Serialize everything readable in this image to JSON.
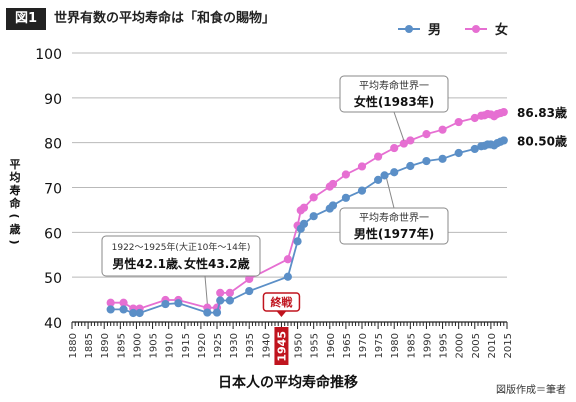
{
  "figure": {
    "badge": "図1",
    "title": "世界有数の平均寿命は「和食の賜物」",
    "bottom_title": "日本人の平均寿命推移",
    "credit": "図版作成＝筆者"
  },
  "colors": {
    "male": "#5b8fc7",
    "female": "#e66fd2",
    "war_marker": "#c0141e",
    "grid": "#b9b9b9",
    "axis": "#222222"
  },
  "annotations": {
    "war_label": "終戦",
    "war_year": "1945",
    "pre_war_line1": "1922〜1925年(大正10年〜14年)",
    "pre_war_line2": "男性42.1歳､女性43.2歳",
    "female_note_line1": "平均寿命世界一",
    "female_note_line2": "女性(1983年)",
    "male_note_line1": "平均寿命世界一",
    "male_note_line2": "男性(1977年)",
    "female_end_value": "86.83歳",
    "male_end_value": "80.50歳"
  },
  "chart_data": {
    "type": "line",
    "title": "日本人の平均寿命推移",
    "xlabel": "",
    "ylabel": "平均寿命(歳)",
    "xlim": [
      1880,
      2015
    ],
    "ylim": [
      40,
      100
    ],
    "x_ticks": [
      1880,
      1885,
      1890,
      1895,
      1900,
      1905,
      1910,
      1915,
      1920,
      1925,
      1930,
      1935,
      1940,
      1945,
      1950,
      1955,
      1960,
      1965,
      1970,
      1975,
      1980,
      1985,
      1990,
      1995,
      2000,
      2005,
      2010,
      2015
    ],
    "y_ticks": [
      40,
      50,
      60,
      70,
      80,
      90,
      100
    ],
    "grid": "horizontal",
    "legend": "top-right",
    "series": [
      {
        "name": "男",
        "color": "#5b8fc7",
        "points": [
          [
            1892,
            42.8
          ],
          [
            1896,
            42.8
          ],
          [
            1899,
            42.0
          ],
          [
            1901,
            42.0
          ],
          [
            1909,
            44.0
          ],
          [
            1913,
            44.2
          ],
          [
            1922,
            42.1
          ],
          [
            1925,
            42.1
          ],
          [
            1926,
            44.8
          ],
          [
            1929,
            44.8
          ],
          [
            1935,
            46.9
          ],
          [
            1947,
            50.1
          ],
          [
            1950,
            58.0
          ],
          [
            1951,
            60.8
          ],
          [
            1952,
            61.9
          ],
          [
            1955,
            63.6
          ],
          [
            1960,
            65.3
          ],
          [
            1961,
            66.0
          ],
          [
            1965,
            67.7
          ],
          [
            1970,
            69.3
          ],
          [
            1975,
            71.7
          ],
          [
            1977,
            72.7
          ],
          [
            1980,
            73.4
          ],
          [
            1985,
            74.8
          ],
          [
            1990,
            75.9
          ],
          [
            1995,
            76.4
          ],
          [
            2000,
            77.7
          ],
          [
            2005,
            78.6
          ],
          [
            2007,
            79.2
          ],
          [
            2008,
            79.3
          ],
          [
            2009,
            79.6
          ],
          [
            2010,
            79.6
          ],
          [
            2011,
            79.4
          ],
          [
            2012,
            79.9
          ],
          [
            2013,
            80.2
          ],
          [
            2014,
            80.5
          ]
        ]
      },
      {
        "name": "女",
        "color": "#e66fd2",
        "points": [
          [
            1892,
            44.3
          ],
          [
            1896,
            44.3
          ],
          [
            1899,
            43.0
          ],
          [
            1901,
            43.0
          ],
          [
            1909,
            44.9
          ],
          [
            1913,
            44.9
          ],
          [
            1922,
            43.2
          ],
          [
            1925,
            43.2
          ],
          [
            1926,
            46.5
          ],
          [
            1929,
            46.5
          ],
          [
            1935,
            49.6
          ],
          [
            1947,
            54.0
          ],
          [
            1950,
            61.5
          ],
          [
            1951,
            64.9
          ],
          [
            1952,
            65.5
          ],
          [
            1955,
            67.8
          ],
          [
            1960,
            70.2
          ],
          [
            1961,
            70.8
          ],
          [
            1965,
            72.9
          ],
          [
            1970,
            74.7
          ],
          [
            1975,
            76.9
          ],
          [
            1980,
            78.8
          ],
          [
            1983,
            79.8
          ],
          [
            1985,
            80.5
          ],
          [
            1990,
            81.9
          ],
          [
            1995,
            82.9
          ],
          [
            2000,
            84.6
          ],
          [
            2005,
            85.5
          ],
          [
            2007,
            86.0
          ],
          [
            2008,
            86.1
          ],
          [
            2009,
            86.4
          ],
          [
            2010,
            86.3
          ],
          [
            2011,
            85.9
          ],
          [
            2012,
            86.4
          ],
          [
            2013,
            86.6
          ],
          [
            2014,
            86.83
          ]
        ]
      }
    ]
  }
}
